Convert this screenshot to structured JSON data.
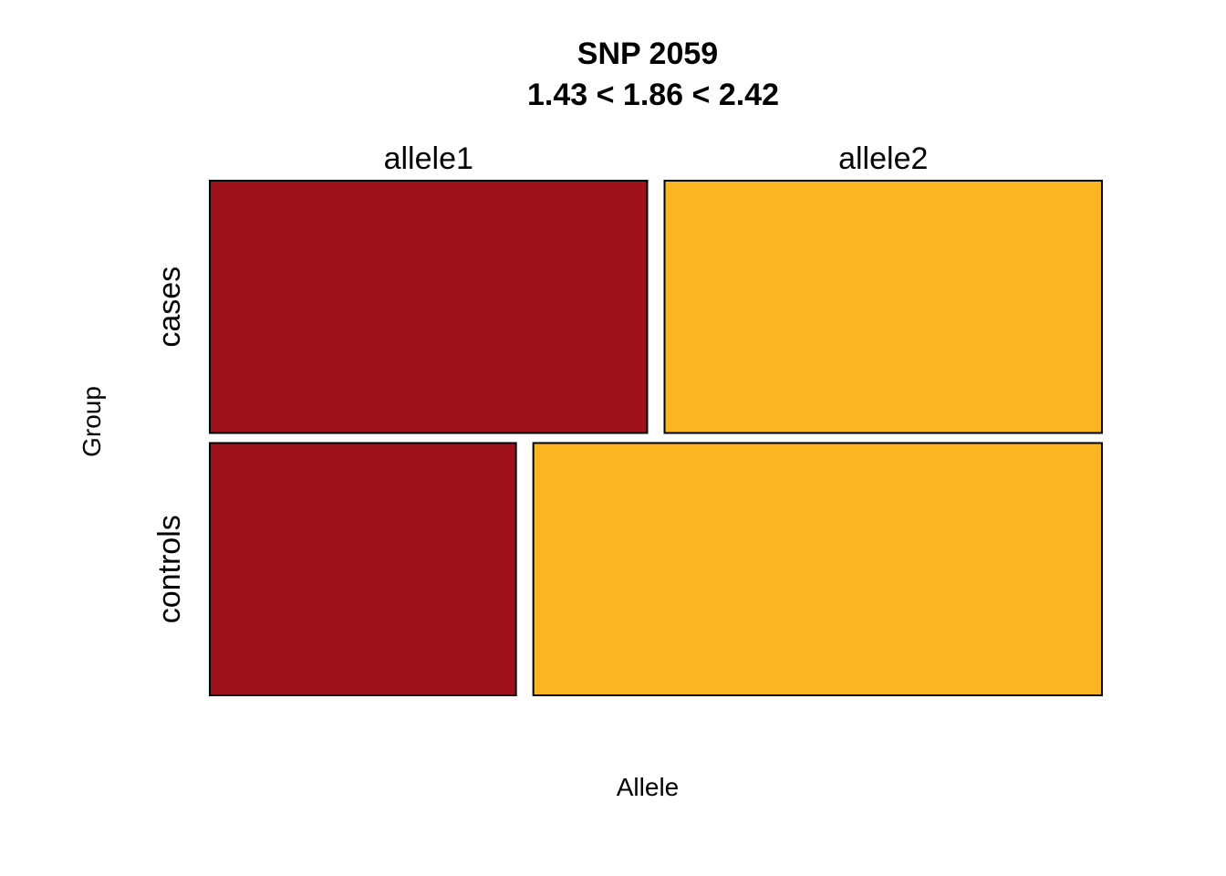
{
  "chart_data": {
    "type": "mosaic",
    "title": "SNP 2059",
    "subtitle": "1.43 < 1.86 < 2.42",
    "xlabel": "Allele",
    "ylabel": "Group",
    "columns": [
      "allele1",
      "allele2"
    ],
    "rows": [
      "cases",
      "controls"
    ],
    "row_proportions": [
      0.5,
      0.5
    ],
    "cells": [
      {
        "row": "cases",
        "values": [
          {
            "column": "allele1",
            "proportion": 0.5
          },
          {
            "column": "allele2",
            "proportion": 0.5
          }
        ]
      },
      {
        "row": "controls",
        "values": [
          {
            "column": "allele1",
            "proportion": 0.35
          },
          {
            "column": "allele2",
            "proportion": 0.65
          }
        ]
      }
    ],
    "colors": {
      "allele1": "#a0121b",
      "allele2": "#fbb521"
    }
  }
}
